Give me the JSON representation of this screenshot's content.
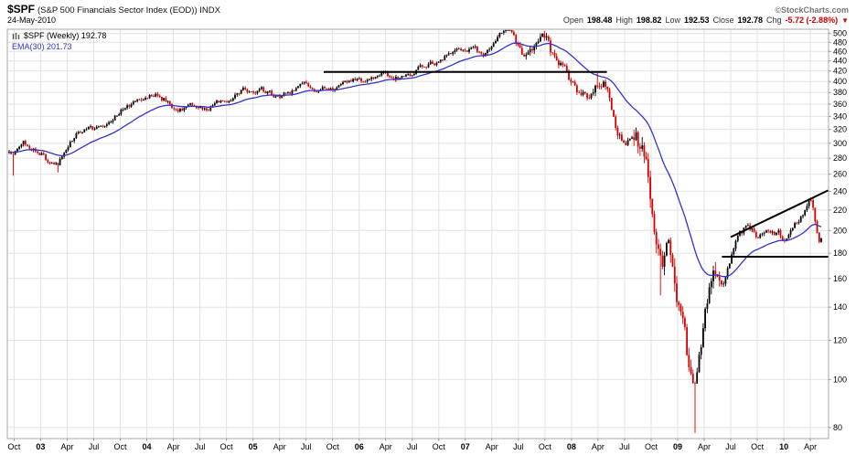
{
  "header": {
    "symbol": "$SPF",
    "title_rest": "(S&P 500 Financials Sector Index (EOD)) INDX",
    "credit": "©StockCharts.com",
    "date": "24-May-2010",
    "quote": {
      "open_label": "Open",
      "open_value": "198.48",
      "high_label": "High",
      "high_value": "198.82",
      "low_label": "Low",
      "low_value": "192.53",
      "close_label": "Close",
      "close_value": "192.78",
      "chg_label": "Chg",
      "chg_value": "-5.72 (-2.88%)",
      "chg_arrow": "▼"
    }
  },
  "legend": {
    "series_label": "$SPF (Weekly) 192.78",
    "ema_label": "EMA(30) 201.73"
  },
  "chart_data": {
    "type": "candlestick",
    "timeframe": "weekly",
    "title": "$SPF (S&P 500 Financials Sector Index (EOD)) INDX — Weekly",
    "scale": "log",
    "x_range": [
      "2002-10",
      "2010-05"
    ],
    "ylim": [
      76,
      510
    ],
    "y_ticks": [
      500,
      480,
      460,
      440,
      420,
      400,
      380,
      360,
      340,
      320,
      300,
      280,
      260,
      240,
      220,
      200,
      180,
      160,
      140,
      120,
      100,
      80
    ],
    "x_ticks": [
      {
        "d": "2002-10",
        "label": "Oct",
        "b": false
      },
      {
        "d": "2003-01",
        "label": "03",
        "b": true
      },
      {
        "d": "2003-04",
        "label": "Apr",
        "b": false
      },
      {
        "d": "2003-07",
        "label": "Jul",
        "b": false
      },
      {
        "d": "2003-10",
        "label": "Oct",
        "b": false
      },
      {
        "d": "2004-01",
        "label": "04",
        "b": true
      },
      {
        "d": "2004-04",
        "label": "Apr",
        "b": false
      },
      {
        "d": "2004-07",
        "label": "Jul",
        "b": false
      },
      {
        "d": "2004-10",
        "label": "Oct",
        "b": false
      },
      {
        "d": "2005-01",
        "label": "05",
        "b": true
      },
      {
        "d": "2005-04",
        "label": "Apr",
        "b": false
      },
      {
        "d": "2005-07",
        "label": "Jul",
        "b": false
      },
      {
        "d": "2005-10",
        "label": "Oct",
        "b": false
      },
      {
        "d": "2006-01",
        "label": "06",
        "b": true
      },
      {
        "d": "2006-04",
        "label": "Apr",
        "b": false
      },
      {
        "d": "2006-07",
        "label": "Jul",
        "b": false
      },
      {
        "d": "2006-10",
        "label": "Oct",
        "b": false
      },
      {
        "d": "2007-01",
        "label": "07",
        "b": true
      },
      {
        "d": "2007-04",
        "label": "Apr",
        "b": false
      },
      {
        "d": "2007-07",
        "label": "Jul",
        "b": false
      },
      {
        "d": "2007-10",
        "label": "Oct",
        "b": false
      },
      {
        "d": "2008-01",
        "label": "08",
        "b": true
      },
      {
        "d": "2008-04",
        "label": "Apr",
        "b": false
      },
      {
        "d": "2008-07",
        "label": "Jul",
        "b": false
      },
      {
        "d": "2008-10",
        "label": "Oct",
        "b": false
      },
      {
        "d": "2009-01",
        "label": "09",
        "b": true
      },
      {
        "d": "2009-04",
        "label": "Apr",
        "b": false
      },
      {
        "d": "2009-07",
        "label": "Jul",
        "b": false
      },
      {
        "d": "2009-10",
        "label": "Oct",
        "b": false
      },
      {
        "d": "2010-01",
        "label": "10",
        "b": true
      },
      {
        "d": "2010-04",
        "label": "Apr",
        "b": false
      }
    ],
    "monthly_closes": [
      {
        "m": "2002-10",
        "c": 288,
        "lo": 258
      },
      {
        "m": "2002-11",
        "c": 305
      },
      {
        "m": "2002-12",
        "c": 295
      },
      {
        "m": "2003-01",
        "c": 288
      },
      {
        "m": "2003-02",
        "c": 272
      },
      {
        "m": "2003-03",
        "c": 272,
        "lo": 262
      },
      {
        "m": "2003-04",
        "c": 295
      },
      {
        "m": "2003-05",
        "c": 312
      },
      {
        "m": "2003-06",
        "c": 322
      },
      {
        "m": "2003-07",
        "c": 322
      },
      {
        "m": "2003-08",
        "c": 330
      },
      {
        "m": "2003-09",
        "c": 332
      },
      {
        "m": "2003-10",
        "c": 348
      },
      {
        "m": "2003-11",
        "c": 355
      },
      {
        "m": "2003-12",
        "c": 368
      },
      {
        "m": "2004-01",
        "c": 372
      },
      {
        "m": "2004-02",
        "c": 375
      },
      {
        "m": "2004-03",
        "c": 368
      },
      {
        "m": "2004-04",
        "c": 355
      },
      {
        "m": "2004-05",
        "c": 352
      },
      {
        "m": "2004-06",
        "c": 362
      },
      {
        "m": "2004-07",
        "c": 355
      },
      {
        "m": "2004-08",
        "c": 352
      },
      {
        "m": "2004-09",
        "c": 362
      },
      {
        "m": "2004-10",
        "c": 362
      },
      {
        "m": "2004-11",
        "c": 378
      },
      {
        "m": "2004-12",
        "c": 388
      },
      {
        "m": "2005-01",
        "c": 375
      },
      {
        "m": "2005-02",
        "c": 385
      },
      {
        "m": "2005-03",
        "c": 378
      },
      {
        "m": "2005-04",
        "c": 368
      },
      {
        "m": "2005-05",
        "c": 380
      },
      {
        "m": "2005-06",
        "c": 385
      },
      {
        "m": "2005-07",
        "c": 395
      },
      {
        "m": "2005-08",
        "c": 388
      },
      {
        "m": "2005-09",
        "c": 395
      },
      {
        "m": "2005-10",
        "c": 385
      },
      {
        "m": "2005-11",
        "c": 400
      },
      {
        "m": "2005-12",
        "c": 398
      },
      {
        "m": "2006-01",
        "c": 405
      },
      {
        "m": "2006-02",
        "c": 402
      },
      {
        "m": "2006-03",
        "c": 410
      },
      {
        "m": "2006-04",
        "c": 415,
        "hi": 419
      },
      {
        "m": "2006-05",
        "c": 405
      },
      {
        "m": "2006-06",
        "c": 412
      },
      {
        "m": "2006-07",
        "c": 415
      },
      {
        "m": "2006-08",
        "c": 426
      },
      {
        "m": "2006-09",
        "c": 432
      },
      {
        "m": "2006-10",
        "c": 442
      },
      {
        "m": "2006-11",
        "c": 450
      },
      {
        "m": "2006-12",
        "c": 456
      },
      {
        "m": "2007-01",
        "c": 462
      },
      {
        "m": "2007-02",
        "c": 465
      },
      {
        "m": "2007-03",
        "c": 452
      },
      {
        "m": "2007-04",
        "c": 478
      },
      {
        "m": "2007-05",
        "c": 498
      },
      {
        "m": "2007-06",
        "c": 505,
        "hi": 507
      },
      {
        "m": "2007-07",
        "c": 472
      },
      {
        "m": "2007-08",
        "c": 448
      },
      {
        "m": "2007-09",
        "c": 470
      },
      {
        "m": "2007-10",
        "c": 494,
        "hi": 501
      },
      {
        "m": "2007-11",
        "c": 442
      },
      {
        "m": "2007-12",
        "c": 436
      },
      {
        "m": "2008-01",
        "c": 392
      },
      {
        "m": "2008-02",
        "c": 382
      },
      {
        "m": "2008-03",
        "c": 372
      },
      {
        "m": "2008-04",
        "c": 402,
        "hi": 416
      },
      {
        "m": "2008-05",
        "c": 392
      },
      {
        "m": "2008-06",
        "c": 332
      },
      {
        "m": "2008-07",
        "c": 292
      },
      {
        "m": "2008-08",
        "c": 310
      },
      {
        "m": "2008-09",
        "c": 296
      },
      {
        "m": "2008-10",
        "c": 228
      },
      {
        "m": "2008-11",
        "c": 166,
        "lo": 148
      },
      {
        "m": "2008-12",
        "c": 182
      },
      {
        "m": "2009-01",
        "c": 142
      },
      {
        "m": "2009-02",
        "c": 112
      },
      {
        "m": "2009-03",
        "c": 96,
        "lo": 78
      },
      {
        "m": "2009-04",
        "c": 136
      },
      {
        "m": "2009-05",
        "c": 155
      },
      {
        "m": "2009-06",
        "c": 150
      },
      {
        "m": "2009-07",
        "c": 176
      },
      {
        "m": "2009-08",
        "c": 196
      },
      {
        "m": "2009-09",
        "c": 206
      },
      {
        "m": "2009-10",
        "c": 194
      },
      {
        "m": "2009-11",
        "c": 204
      },
      {
        "m": "2009-12",
        "c": 200
      },
      {
        "m": "2010-01",
        "c": 194
      },
      {
        "m": "2010-02",
        "c": 200
      },
      {
        "m": "2010-03",
        "c": 214
      },
      {
        "m": "2010-04",
        "c": 228
      },
      {
        "m": "2010-05",
        "c": 192.78
      }
    ],
    "key_points": {
      "last_close": 192.78,
      "ema30_last": 201.73,
      "all_time_low": 78,
      "peak_2007": 507
    },
    "ema_period": 30,
    "trendlines": [
      {
        "name": "resistance-2005-2008",
        "price": 418,
        "from": "2005-09",
        "to": "2008-05"
      },
      {
        "name": "rising-resistance-2009-2010",
        "from": "2009-07",
        "from_price": 194,
        "to": "2010-06",
        "to_price": 241
      },
      {
        "name": "support-2009-2010",
        "price": 177,
        "from": "2009-06",
        "to": "2010-06"
      }
    ],
    "colors": {
      "up": "#000000",
      "down": "#d40000",
      "ema": "#3333cc",
      "grid": "#e2e2e2",
      "border": "#aaaaaa",
      "trendline": "#000000",
      "chg_negative": "#cc0000",
      "axis_text": "#000000"
    }
  }
}
